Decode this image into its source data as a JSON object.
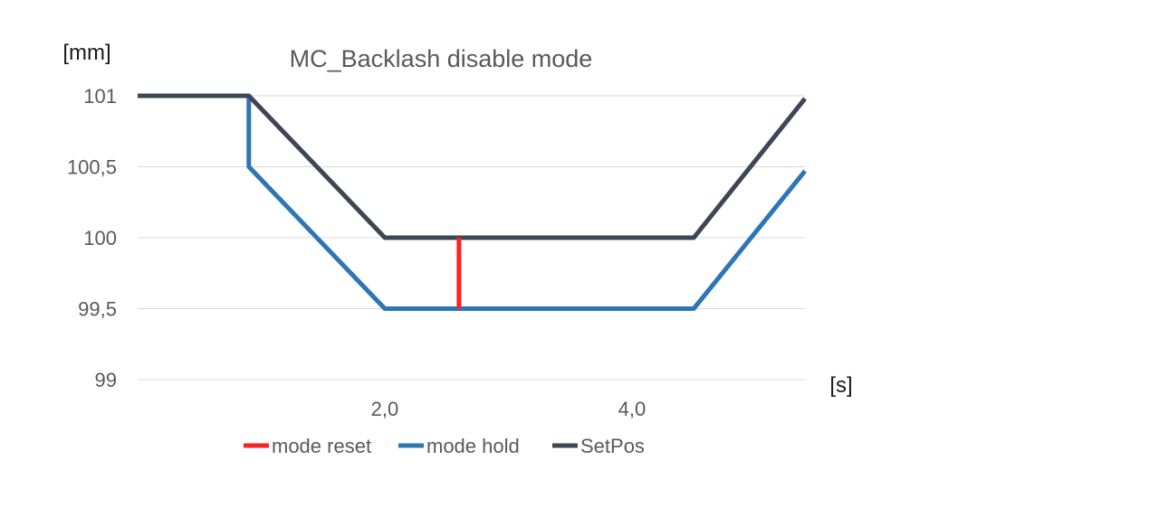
{
  "chart_data": {
    "type": "line",
    "title": "MC_Backlash disable mode",
    "xlabel": "[s]",
    "ylabel": "[mm]",
    "xlim": [
      0,
      5.4
    ],
    "ylim": [
      99,
      101
    ],
    "yticks": [
      {
        "value": 101,
        "label": "101"
      },
      {
        "value": 100.5,
        "label": "100,5"
      },
      {
        "value": 100,
        "label": "100"
      },
      {
        "value": 99.5,
        "label": "99,5"
      },
      {
        "value": 99,
        "label": "99"
      }
    ],
    "xticks": [
      {
        "value": 2.0,
        "label": "2,0"
      },
      {
        "value": 4.0,
        "label": "4,0"
      }
    ],
    "grid": true,
    "legend_position": "bottom",
    "series": [
      {
        "name": "mode reset",
        "color": "#ff1f1f",
        "points": [
          [
            2.6,
            100
          ],
          [
            2.6,
            99.5
          ]
        ]
      },
      {
        "name": "mode hold",
        "color": "#2e75b6",
        "points": [
          [
            0.9,
            101
          ],
          [
            0.9,
            100.5
          ],
          [
            2.0,
            99.5
          ],
          [
            4.5,
            99.5
          ],
          [
            5.4,
            100.47
          ]
        ]
      },
      {
        "name": "SetPos",
        "color": "#3d4654",
        "points": [
          [
            0,
            101
          ],
          [
            0.9,
            101
          ],
          [
            2.0,
            100
          ],
          [
            4.5,
            100
          ],
          [
            5.4,
            100.98
          ]
        ]
      }
    ]
  }
}
